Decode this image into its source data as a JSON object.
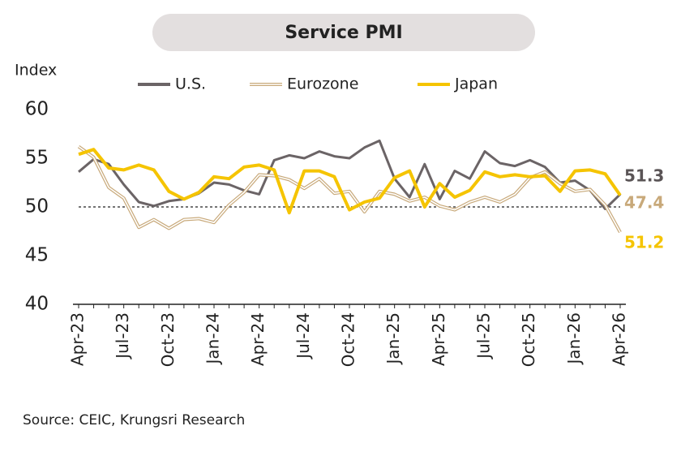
{
  "chart_data": {
    "type": "line",
    "title": "Service PMI",
    "y_label": "Index",
    "source": "Source: CEIC, Krungsri Research",
    "categories": [
      "Apr-23",
      null,
      null,
      "Jul-23",
      null,
      null,
      "Oct-23",
      null,
      null,
      "Jan-24",
      null,
      null,
      "Apr-24",
      null,
      null,
      "Jul-24",
      null,
      null,
      "Oct-24",
      null,
      null,
      "Jan-25",
      null,
      null,
      "Apr-25",
      null,
      null,
      "Jul-25",
      null,
      null,
      "Oct-25",
      null,
      null,
      "Jan-26",
      null,
      null,
      "Apr-26"
    ],
    "series": [
      {
        "name": "U.S.",
        "color": "#6b6466",
        "values": [
          53.6,
          54.9,
          54.4,
          52.3,
          50.5,
          50.1,
          50.6,
          50.8,
          51.4,
          52.5,
          52.3,
          51.7,
          51.3,
          54.8,
          55.3,
          55.0,
          55.7,
          55.2,
          55.0,
          56.1,
          56.8,
          52.9,
          51.0,
          54.4,
          50.8,
          53.7,
          52.9,
          55.7,
          54.5,
          54.2,
          54.8,
          54.1,
          52.5,
          52.7,
          51.7,
          49.8,
          51.3
        ]
      },
      {
        "name": "Eurozone",
        "color": "#c8a97a",
        "values": [
          56.2,
          55.1,
          52.0,
          50.9,
          47.9,
          48.7,
          47.8,
          48.7,
          48.8,
          48.4,
          50.2,
          51.5,
          53.3,
          53.2,
          52.8,
          51.9,
          52.9,
          51.4,
          51.6,
          49.5,
          51.6,
          51.3,
          50.6,
          51.0,
          50.1,
          49.7,
          50.5,
          51.0,
          50.5,
          51.3,
          53.0,
          53.6,
          52.4,
          51.6,
          51.8,
          50.2,
          47.4
        ]
      },
      {
        "name": "Japan",
        "color": "#f5c400",
        "values": [
          55.4,
          55.9,
          54.0,
          53.8,
          54.3,
          53.8,
          51.6,
          50.8,
          51.5,
          53.1,
          52.9,
          54.1,
          54.3,
          53.8,
          49.4,
          53.7,
          53.7,
          53.1,
          49.7,
          50.5,
          50.9,
          53.0,
          53.7,
          50.0,
          52.4,
          51.0,
          51.7,
          53.6,
          53.1,
          53.3,
          53.1,
          53.2,
          51.6,
          53.7,
          53.8,
          53.4,
          51.2
        ]
      }
    ],
    "ylim": [
      40,
      60
    ],
    "yticks": [
      40,
      45,
      50,
      55,
      60
    ],
    "reference_line": 50
  }
}
